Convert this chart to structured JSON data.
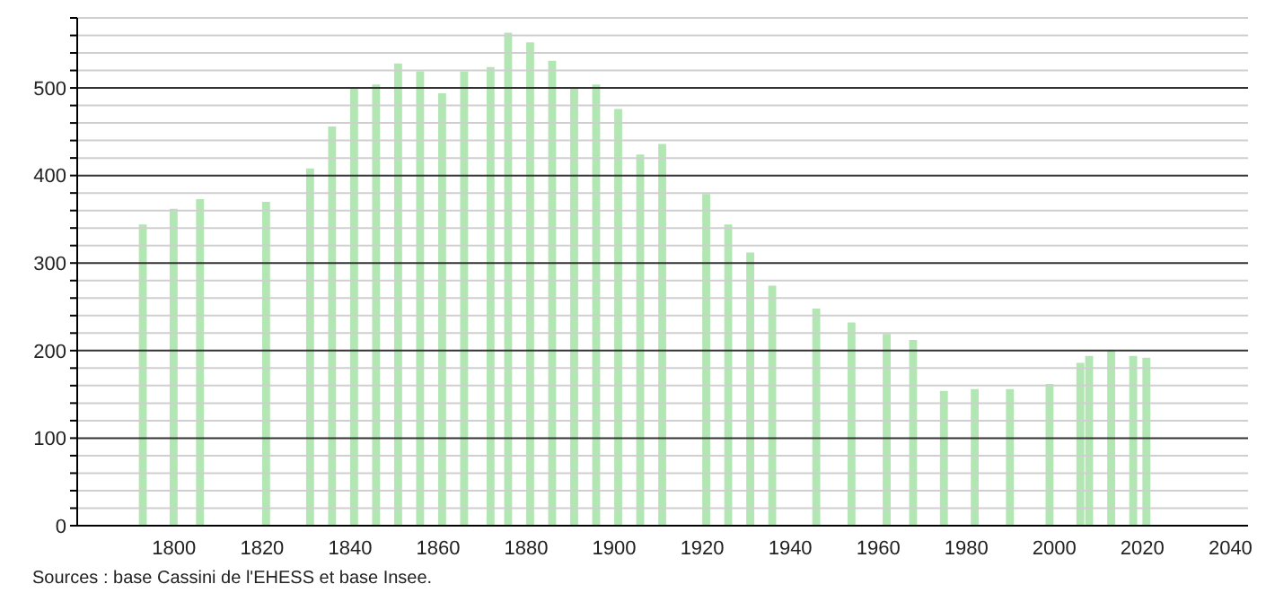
{
  "chart_data": {
    "type": "bar",
    "x": [
      1793,
      1800,
      1806,
      1821,
      1831,
      1836,
      1841,
      1846,
      1851,
      1856,
      1861,
      1866,
      1872,
      1876,
      1881,
      1886,
      1891,
      1896,
      1901,
      1906,
      1911,
      1921,
      1926,
      1931,
      1936,
      1946,
      1954,
      1962,
      1968,
      1975,
      1982,
      1990,
      1999,
      2006,
      2008,
      2013,
      2018,
      2021
    ],
    "values": [
      344,
      362,
      373,
      370,
      408,
      456,
      500,
      504,
      528,
      519,
      494,
      519,
      524,
      563,
      552,
      531,
      499,
      504,
      476,
      424,
      436,
      379,
      344,
      312,
      274,
      248,
      232,
      219,
      212,
      154,
      156,
      156,
      162,
      186,
      194,
      200,
      194,
      192
    ],
    "color": "#b2e6b2",
    "xlim": [
      1778,
      2044
    ],
    "xticks": [
      1800,
      1820,
      1840,
      1860,
      1880,
      1900,
      1920,
      1940,
      1960,
      1980,
      2000,
      2020,
      2040
    ],
    "ylim": [
      0,
      580
    ],
    "yticks": [
      0,
      {
        "value": 20,
        "label": null
      },
      {
        "value": 40,
        "label": null
      },
      {
        "value": 60,
        "label": null
      },
      {
        "value": 80,
        "label": null
      },
      100,
      {
        "value": 120,
        "label": null
      },
      {
        "value": 140,
        "label": null
      },
      {
        "value": 160,
        "label": null
      },
      {
        "value": 180,
        "label": null
      },
      200,
      {
        "value": 220,
        "label": null
      },
      {
        "value": 240,
        "label": null
      },
      {
        "value": 260,
        "label": null
      },
      {
        "value": 280,
        "label": null
      },
      300,
      {
        "value": 320,
        "label": null
      },
      {
        "value": 340,
        "label": null
      },
      {
        "value": 360,
        "label": null
      },
      {
        "value": 380,
        "label": null
      },
      400,
      {
        "value": 420,
        "label": null
      },
      {
        "value": 440,
        "label": null
      },
      {
        "value": 460,
        "label": null
      },
      {
        "value": 480,
        "label": null
      },
      500,
      {
        "value": 520,
        "label": null
      },
      {
        "value": 540,
        "label": null
      },
      {
        "value": 560,
        "label": null
      },
      {
        "value": 580,
        "label": null
      }
    ],
    "grid": "y",
    "annotations": [
      "Sources : base Cassini de l'EHESS et base Insee."
    ]
  }
}
